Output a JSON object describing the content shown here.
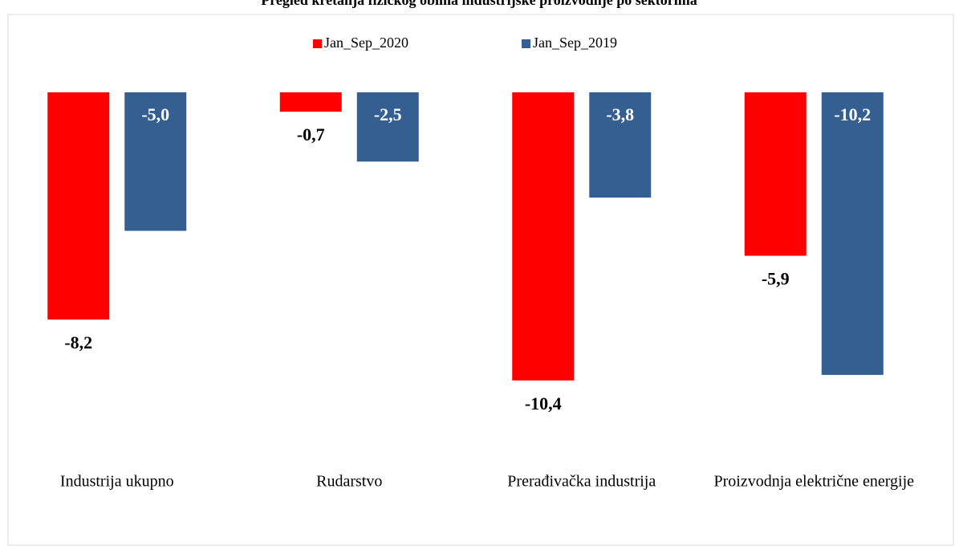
{
  "chart_data": {
    "type": "bar",
    "title": "Pregled kretanja fizičkog obima industrijske proizvodnje po sektorima",
    "categories": [
      "Industrija ukupno",
      "Rudarstvo",
      "Prerađivačka industrija",
      "Proizvodnja električne energije"
    ],
    "series": [
      {
        "name": "Jan_Sep_2020",
        "color": "#ff0000",
        "values": [
          -8.2,
          -0.7,
          -10.4,
          -5.9
        ],
        "value_labels": [
          "-8,2",
          "-0,7",
          "-10,4",
          "-5,9"
        ]
      },
      {
        "name": "Jan_Sep_2019",
        "color": "#355f91",
        "values": [
          -5.0,
          -2.5,
          -3.8,
          -10.2
        ],
        "value_labels": [
          "-5,0",
          "-2,5",
          "-3,8",
          "-10,2"
        ]
      }
    ],
    "ylim": [
      -13,
      0
    ],
    "legend": "top"
  }
}
